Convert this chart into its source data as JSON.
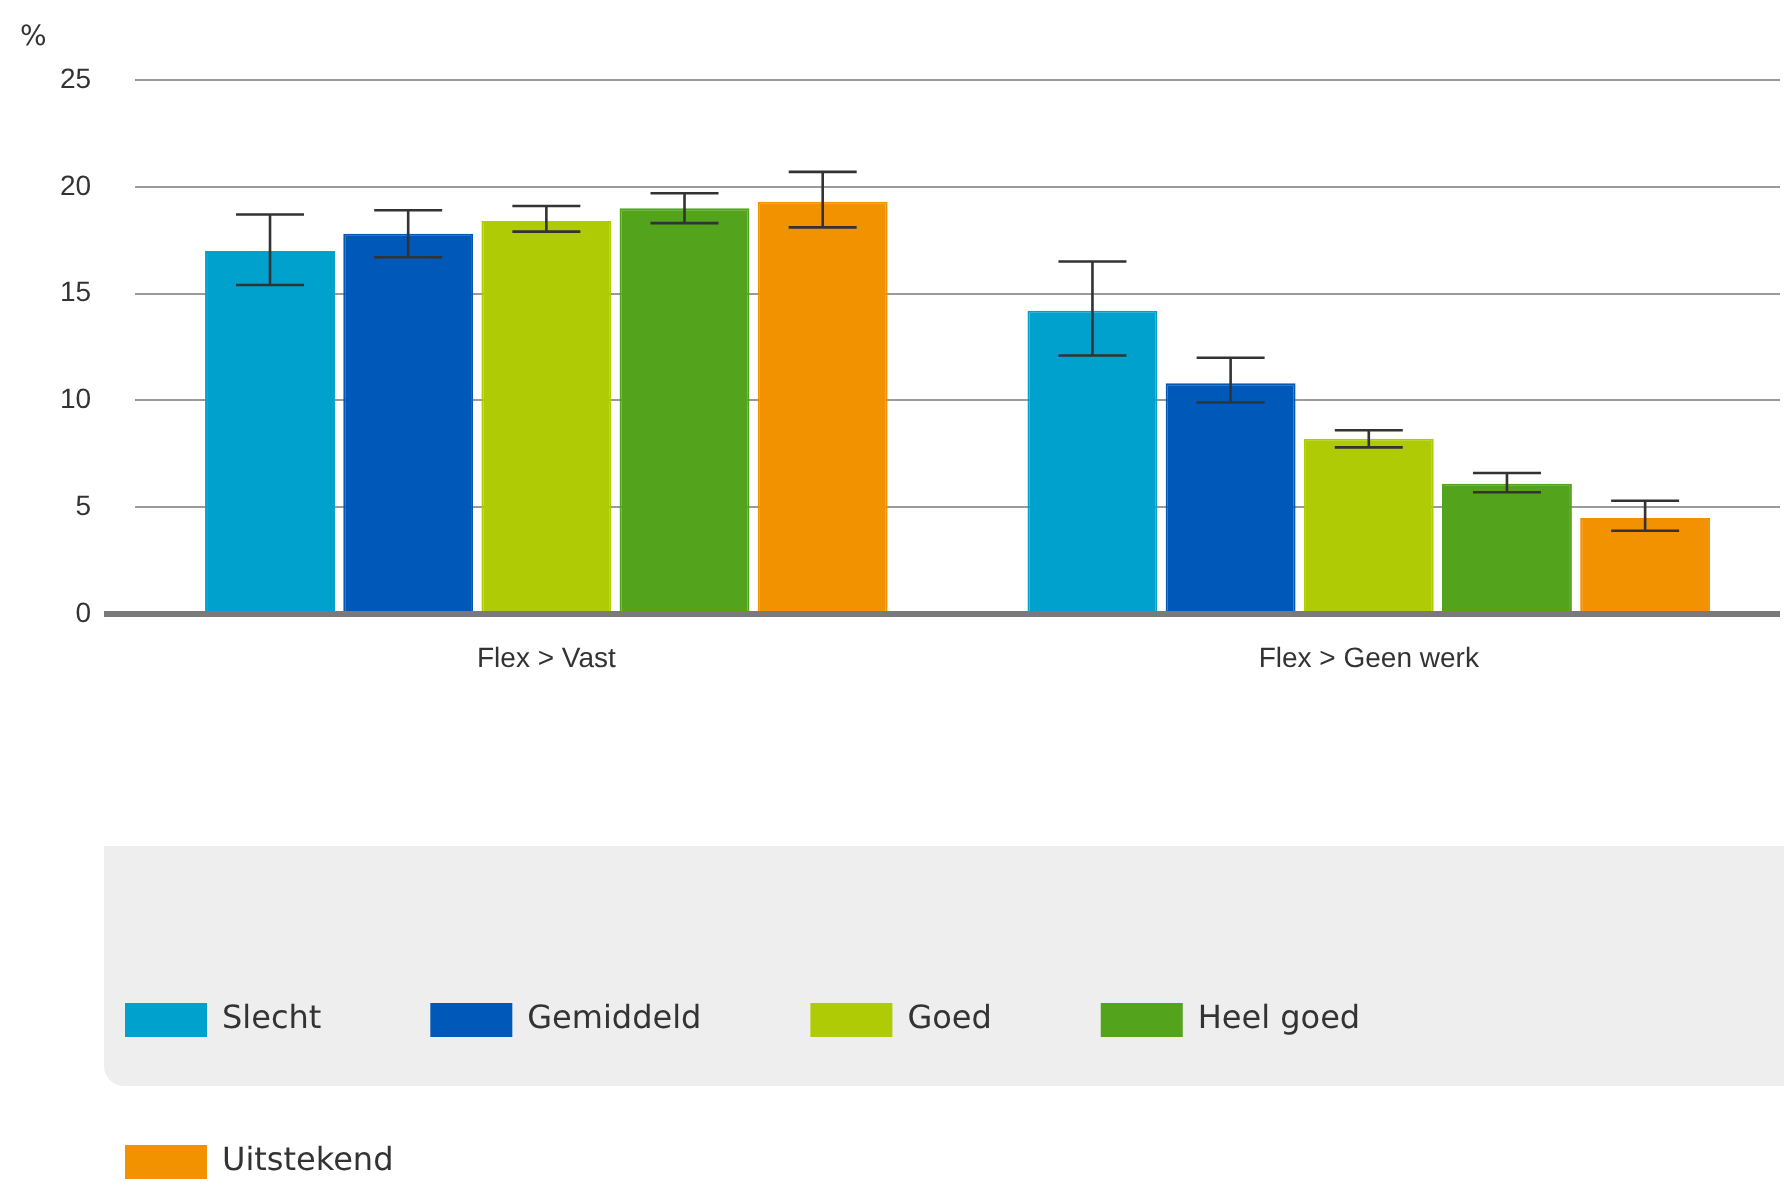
{
  "chart_data": {
    "type": "bar",
    "ylabel": "%",
    "categories": [
      "Flex > Vast",
      "Flex > Geen werk"
    ],
    "series": [
      {
        "name": "Slecht",
        "color": "#00a1cd",
        "values": [
          17.0,
          14.2
        ],
        "errors": [
          [
            15.4,
            18.7
          ],
          [
            12.1,
            16.5
          ]
        ]
      },
      {
        "name": "Gemiddeld",
        "color": "#0058b8",
        "values": [
          17.8,
          10.8
        ],
        "errors": [
          [
            16.7,
            18.9
          ],
          [
            9.9,
            12.0
          ]
        ]
      },
      {
        "name": "Goed",
        "color": "#afcb05",
        "values": [
          18.4,
          8.2
        ],
        "errors": [
          [
            17.9,
            19.1
          ],
          [
            7.8,
            8.6
          ]
        ]
      },
      {
        "name": "Heel goed",
        "color": "#53a31d",
        "values": [
          19.0,
          6.1
        ],
        "errors": [
          [
            18.3,
            19.7
          ],
          [
            5.7,
            6.6
          ]
        ]
      },
      {
        "name": "Uitstekend",
        "color": "#f39200",
        "values": [
          19.3,
          4.5
        ],
        "errors": [
          [
            18.1,
            20.7
          ],
          [
            3.9,
            5.3
          ]
        ]
      }
    ],
    "ylim": [
      0,
      25
    ],
    "yticks": [
      0,
      5,
      10,
      15,
      20,
      25
    ],
    "grid": "y",
    "legend": "bottom"
  }
}
